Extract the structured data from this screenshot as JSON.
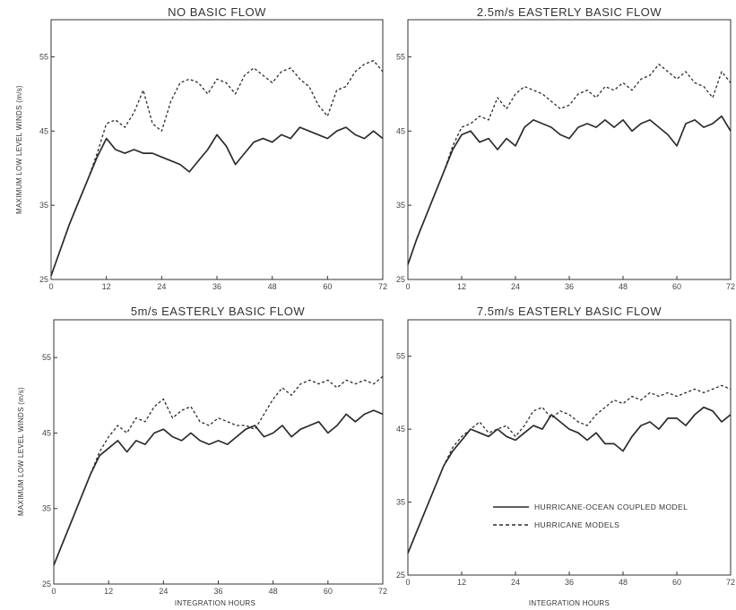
{
  "chart_data": [
    {
      "type": "line",
      "title": "NO BASIC FLOW",
      "xlabel": "",
      "ylabel": "MAXIMUM LOW LEVEL WINDS (m/s)",
      "xlim": [
        0,
        72
      ],
      "ylim": [
        25,
        60
      ],
      "xticks": [
        "0",
        "12",
        "24",
        "36",
        "48",
        "60",
        "72"
      ],
      "yticks": [
        "25",
        "35",
        "45",
        "55"
      ],
      "series": [
        {
          "key": "coupled",
          "x": [
            0,
            2,
            4,
            6,
            8,
            10,
            12,
            14,
            16,
            18,
            20,
            22,
            24,
            26,
            28,
            30,
            32,
            34,
            36,
            38,
            40,
            42,
            44,
            46,
            48,
            50,
            52,
            54,
            56,
            58,
            60,
            62,
            64,
            66,
            68,
            70,
            72
          ],
          "y": [
            25.5,
            29,
            32.5,
            35.5,
            38.5,
            41.5,
            44,
            42.5,
            42,
            42.5,
            42,
            42,
            41.5,
            41,
            40.5,
            39.5,
            41,
            42.5,
            44.5,
            43,
            40.5,
            42,
            43.5,
            44,
            43.5,
            44.5,
            44,
            45.5,
            45,
            44.5,
            44,
            45,
            45.5,
            44.5,
            44,
            45,
            44
          ]
        },
        {
          "key": "uncoupled",
          "x": [
            0,
            2,
            4,
            6,
            8,
            10,
            12,
            14,
            16,
            18,
            20,
            22,
            24,
            26,
            28,
            30,
            32,
            34,
            36,
            38,
            40,
            42,
            44,
            46,
            48,
            50,
            52,
            54,
            56,
            58,
            60,
            62,
            64,
            66,
            68,
            70,
            72
          ],
          "y": [
            25.5,
            29,
            32.5,
            35.5,
            38.5,
            42,
            46,
            46.5,
            45.5,
            47.5,
            50.5,
            46,
            45,
            49,
            51.5,
            52,
            51.5,
            50,
            52,
            51.5,
            50,
            52.5,
            53.5,
            52.5,
            51.5,
            53,
            53.5,
            52,
            51,
            48.5,
            47,
            50.5,
            51,
            53,
            54,
            54.5,
            53
          ]
        }
      ]
    },
    {
      "type": "line",
      "title": "2.5m/s EASTERLY BASIC FLOW",
      "xlabel": "",
      "ylabel": "",
      "xlim": [
        0,
        72
      ],
      "ylim": [
        25,
        60
      ],
      "xticks": [
        "0",
        "12",
        "24",
        "36",
        "48",
        "60",
        "72"
      ],
      "yticks": [
        "25",
        "35",
        "45",
        "55"
      ],
      "series": [
        {
          "key": "coupled",
          "x": [
            0,
            2,
            4,
            6,
            8,
            10,
            12,
            14,
            16,
            18,
            20,
            22,
            24,
            26,
            28,
            30,
            32,
            34,
            36,
            38,
            40,
            42,
            44,
            46,
            48,
            50,
            52,
            54,
            56,
            58,
            60,
            62,
            64,
            66,
            68,
            70,
            72
          ],
          "y": [
            27,
            30.5,
            33.5,
            36.5,
            39.5,
            42.5,
            44.5,
            45,
            43.5,
            44,
            42.5,
            44,
            43,
            45.5,
            46.5,
            46,
            45.5,
            44.5,
            44,
            45.5,
            46,
            45.5,
            46.5,
            45.5,
            46.5,
            45,
            46,
            46.5,
            45.5,
            44.5,
            43,
            46,
            46.5,
            45.5,
            46,
            47,
            45
          ]
        },
        {
          "key": "uncoupled",
          "x": [
            0,
            2,
            4,
            6,
            8,
            10,
            12,
            14,
            16,
            18,
            20,
            22,
            24,
            26,
            28,
            30,
            32,
            34,
            36,
            38,
            40,
            42,
            44,
            46,
            48,
            50,
            52,
            54,
            56,
            58,
            60,
            62,
            64,
            66,
            68,
            70,
            72
          ],
          "y": [
            27,
            30.5,
            33.5,
            36.5,
            39.5,
            43,
            45.5,
            46,
            47,
            46.5,
            49.5,
            48,
            50,
            51,
            50.5,
            50,
            49,
            48,
            48.5,
            50,
            50.5,
            49.5,
            51,
            50.5,
            51.5,
            50.5,
            52,
            52.5,
            54,
            53,
            52,
            53,
            51.5,
            51,
            49.5,
            53,
            51.5
          ]
        }
      ]
    },
    {
      "type": "line",
      "title": "5m/s EASTERLY BASIC FLOW",
      "xlabel": "INTEGRATION HOURS",
      "ylabel": "MAXIMUM LOW LEVEL WINDS (m/s)",
      "xlim": [
        0,
        72
      ],
      "ylim": [
        25,
        60
      ],
      "xticks": [
        "0",
        "12",
        "24",
        "36",
        "48",
        "60",
        "72"
      ],
      "yticks": [
        "25",
        "35",
        "45",
        "55"
      ],
      "series": [
        {
          "key": "coupled",
          "x": [
            0,
            2,
            4,
            6,
            8,
            10,
            12,
            14,
            16,
            18,
            20,
            22,
            24,
            26,
            28,
            30,
            32,
            34,
            36,
            38,
            40,
            42,
            44,
            46,
            48,
            50,
            52,
            54,
            56,
            58,
            60,
            62,
            64,
            66,
            68,
            70,
            72
          ],
          "y": [
            27.5,
            30.5,
            33.5,
            36.5,
            39.5,
            42,
            43,
            44,
            42.5,
            44,
            43.5,
            45,
            45.5,
            44.5,
            44,
            45,
            44,
            43.5,
            44,
            43.5,
            44.5,
            45.5,
            46,
            44.5,
            45,
            46,
            44.5,
            45.5,
            46,
            46.5,
            45,
            46,
            47.5,
            46.5,
            47.5,
            48,
            47.5
          ]
        },
        {
          "key": "uncoupled",
          "x": [
            0,
            2,
            4,
            6,
            8,
            10,
            12,
            14,
            16,
            18,
            20,
            22,
            24,
            26,
            28,
            30,
            32,
            34,
            36,
            38,
            40,
            42,
            44,
            46,
            48,
            50,
            52,
            54,
            56,
            58,
            60,
            62,
            64,
            66,
            68,
            70,
            72
          ],
          "y": [
            27.5,
            30.5,
            33.5,
            36.5,
            39.5,
            42.5,
            44.5,
            46,
            45,
            47,
            46.5,
            48.5,
            49.5,
            47,
            48,
            48.5,
            46.5,
            46,
            47,
            46.5,
            46,
            46,
            45.5,
            47.5,
            49.5,
            51,
            50,
            51.5,
            52,
            51.5,
            52,
            51,
            52,
            51.5,
            52,
            51.5,
            52.5
          ]
        }
      ]
    },
    {
      "type": "line",
      "title": "7.5m/s EASTERLY BASIC FLOW",
      "xlabel": "INTEGRATION HOURS",
      "ylabel": "",
      "xlim": [
        0,
        72
      ],
      "ylim": [
        25,
        60
      ],
      "xticks": [
        "0",
        "12",
        "24",
        "36",
        "48",
        "60",
        "72"
      ],
      "yticks": [
        "25",
        "35",
        "45",
        "55"
      ],
      "series": [
        {
          "key": "coupled",
          "x": [
            0,
            2,
            4,
            6,
            8,
            10,
            12,
            14,
            16,
            18,
            20,
            22,
            24,
            26,
            28,
            30,
            32,
            34,
            36,
            38,
            40,
            42,
            44,
            46,
            48,
            50,
            52,
            54,
            56,
            58,
            60,
            62,
            64,
            66,
            68,
            70,
            72
          ],
          "y": [
            28,
            31,
            34,
            37,
            40,
            42,
            43.5,
            45,
            44.5,
            44,
            45,
            44,
            43.5,
            44.5,
            45.5,
            45,
            47,
            46,
            45,
            44.5,
            43.5,
            44.5,
            43,
            43,
            42,
            44,
            45.5,
            46,
            45,
            46.5,
            46.5,
            45.5,
            47,
            48,
            47.5,
            46,
            47
          ]
        },
        {
          "key": "uncoupled",
          "x": [
            0,
            2,
            4,
            6,
            8,
            10,
            12,
            14,
            16,
            18,
            20,
            22,
            24,
            26,
            28,
            30,
            32,
            34,
            36,
            38,
            40,
            42,
            44,
            46,
            48,
            50,
            52,
            54,
            56,
            58,
            60,
            62,
            64,
            66,
            68,
            70,
            72
          ],
          "y": [
            28,
            31,
            34,
            37,
            40,
            42.5,
            44,
            45,
            46,
            44.5,
            45,
            45.5,
            44,
            45.5,
            47.5,
            48,
            46.5,
            47.5,
            47,
            46,
            45.5,
            47,
            48,
            49,
            48.5,
            49.5,
            49,
            50,
            49.5,
            50,
            49.5,
            50,
            50.5,
            50,
            50.5,
            51,
            50.5
          ]
        }
      ]
    }
  ],
  "legend": {
    "coupled": "HURRICANE-OCEAN COUPLED MODEL",
    "uncoupled": "HURRICANE MODELS"
  },
  "colors": {
    "line": "#2b2b2b",
    "axis": "#333333",
    "background": "#ffffff"
  }
}
